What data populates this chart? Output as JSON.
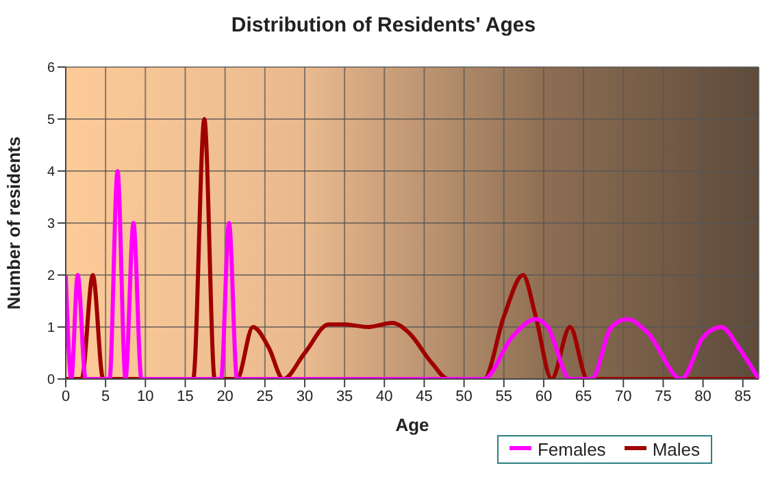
{
  "chart_data": {
    "type": "line",
    "title": "Distribution of Residents' Ages",
    "xlabel": "Age",
    "ylabel": "Number of residents",
    "series": [
      {
        "name": "Males",
        "color": "#a00000",
        "x": [
          0,
          1,
          2,
          3.4,
          4.7,
          16,
          17.4,
          18.7,
          21.5,
          23.5,
          25.5,
          27.3,
          30,
          33,
          35,
          38,
          41,
          43,
          46,
          48,
          52.5,
          55,
          57.4,
          59,
          61,
          63.3,
          65.5,
          87
        ],
        "values": [
          0,
          0,
          0,
          2,
          0,
          0,
          5,
          0,
          0,
          1,
          0.6,
          0,
          0.5,
          1.05,
          1.05,
          1,
          1.08,
          0.9,
          0.3,
          0,
          0,
          1.2,
          2,
          1.2,
          0,
          1,
          0,
          0
        ]
      },
      {
        "name": "Females",
        "color": "#ff00ff",
        "x": [
          0,
          0.7,
          1.5,
          2.5,
          5.5,
          6.5,
          7.5,
          8.5,
          9.5,
          19.5,
          20.5,
          21.5,
          52.5,
          56,
          59,
          60.5,
          63.3,
          66,
          68.5,
          70.5,
          73,
          77.3,
          80,
          82.3,
          84.5,
          87
        ],
        "values": [
          2,
          0,
          2,
          0,
          0,
          4,
          0,
          3,
          0,
          0,
          3,
          0,
          0,
          0.8,
          1.15,
          1,
          0,
          0,
          1,
          1.15,
          0.9,
          0,
          0.8,
          1,
          0.6,
          0
        ]
      }
    ],
    "xlim": [
      0,
      87
    ],
    "xticks": [
      0,
      5,
      10,
      15,
      20,
      25,
      30,
      35,
      40,
      45,
      50,
      55,
      60,
      65,
      70,
      75,
      80,
      85
    ],
    "ylim": [
      0,
      6
    ],
    "yticks": [
      0,
      1,
      2,
      3,
      4,
      5,
      6
    ],
    "grid": true,
    "legend": "bottom",
    "line_style": "solid",
    "marker": "none"
  }
}
